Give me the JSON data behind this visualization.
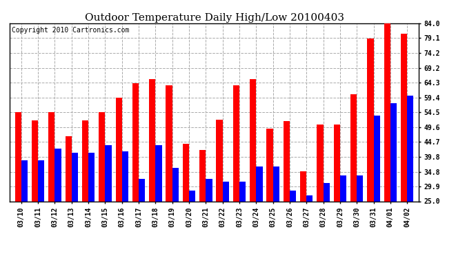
{
  "title": "Outdoor Temperature Daily High/Low 20100403",
  "copyright": "Copyright 2010 Cartronics.com",
  "dates": [
    "03/10",
    "03/11",
    "03/12",
    "03/13",
    "03/14",
    "03/15",
    "03/16",
    "03/17",
    "03/18",
    "03/19",
    "03/20",
    "03/21",
    "03/22",
    "03/23",
    "03/24",
    "03/25",
    "03/26",
    "03/27",
    "03/28",
    "03/29",
    "03/30",
    "03/31",
    "04/01",
    "04/02"
  ],
  "highs": [
    54.5,
    51.8,
    54.5,
    46.5,
    51.8,
    54.5,
    59.4,
    64.0,
    65.5,
    63.5,
    44.0,
    42.0,
    52.0,
    63.5,
    65.5,
    49.0,
    51.5,
    35.0,
    50.5,
    50.5,
    60.5,
    79.0,
    85.0,
    80.5
  ],
  "lows": [
    38.5,
    38.5,
    42.5,
    41.0,
    41.0,
    43.5,
    41.5,
    32.5,
    43.5,
    36.0,
    28.5,
    32.5,
    31.5,
    31.5,
    36.5,
    36.5,
    28.5,
    27.0,
    31.0,
    33.5,
    33.5,
    53.5,
    57.5,
    60.0
  ],
  "high_color": "#ff0000",
  "low_color": "#0000ff",
  "bg_color": "#ffffff",
  "grid_color": "#aaaaaa",
  "yticks": [
    25.0,
    29.9,
    34.8,
    39.8,
    44.7,
    49.6,
    54.5,
    59.4,
    64.3,
    69.2,
    74.2,
    79.1,
    84.0
  ],
  "ylim": [
    25.0,
    84.0
  ],
  "title_fontsize": 11,
  "copyright_fontsize": 7,
  "bar_width": 0.38
}
